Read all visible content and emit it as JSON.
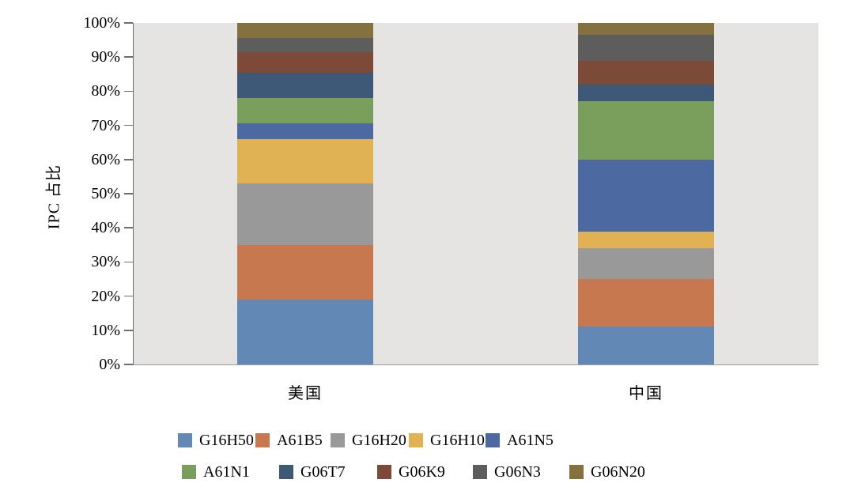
{
  "figure": {
    "background": "#FFFFFF",
    "plot_background": "#E5E4E2",
    "axis_color": "#6E6E6E",
    "baseline_color": "#9A9A9A",
    "text_color": "#000000"
  },
  "chart_data": {
    "type": "bar",
    "stacked": true,
    "orientation": "vertical",
    "title": "",
    "xlabel": "",
    "ylabel": "IPC 占比",
    "categories": [
      "美国",
      "中国"
    ],
    "series": [
      {
        "name": "G16H50",
        "color": "#6289B6",
        "values": [
          19,
          11
        ]
      },
      {
        "name": "A61B5",
        "color": "#C7784F",
        "values": [
          16,
          14
        ]
      },
      {
        "name": "G16H20",
        "color": "#999999",
        "values": [
          18,
          9
        ]
      },
      {
        "name": "G16H10",
        "color": "#E1B254",
        "values": [
          13,
          5
        ]
      },
      {
        "name": "A61N5",
        "color": "#4D69A1",
        "values": [
          4.5,
          21
        ]
      },
      {
        "name": "A61N1",
        "color": "#7A9F5C",
        "values": [
          7.5,
          17
        ]
      },
      {
        "name": "G06T7",
        "color": "#3E5878",
        "values": [
          7.5,
          5
        ]
      },
      {
        "name": "G06K9",
        "color": "#7C4A36",
        "values": [
          6,
          7
        ]
      },
      {
        "name": "G06N3",
        "color": "#5D5D5D",
        "values": [
          4,
          7.5
        ]
      },
      {
        "name": "G06N20",
        "color": "#857140",
        "values": [
          4.5,
          3.5
        ]
      }
    ],
    "ylim": [
      0,
      100
    ],
    "ytick_step": 10,
    "ytick_suffix": "%",
    "grid": false,
    "legend_position": "bottom",
    "legend_rows": [
      [
        "G16H50",
        "A61B5",
        "G16H20",
        "G16H10",
        "A61N5"
      ],
      [
        "A61N1",
        "G06T7",
        "G06K9",
        "G06N3",
        "G06N20"
      ]
    ]
  }
}
